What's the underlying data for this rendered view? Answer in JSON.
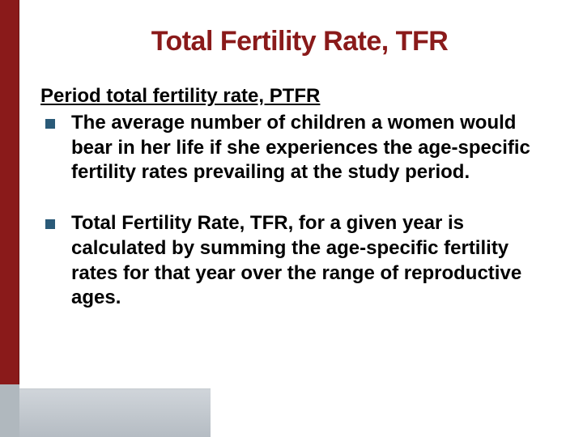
{
  "title_color": "#8a1a1a",
  "bullet_color": "#2a5a78",
  "sidebar_color": "#8a1a1a",
  "sidebar_bottom_color": "#b0b8be",
  "bottom_bar_gradient_from": "#d0d5da",
  "bottom_bar_gradient_to": "#b5bcc3",
  "title": "Total Fertility Rate,  TFR",
  "subtitle": "Period total fertility rate,  PTFR",
  "bullets": [
    "The average number of children a women would bear in her life if she experiences the age-specific fertility rates prevailing at the study period.",
    "Total Fertility Rate, TFR, for a given year is calculated by summing the age-specific fertility rates for that year over the range of reproductive ages."
  ]
}
